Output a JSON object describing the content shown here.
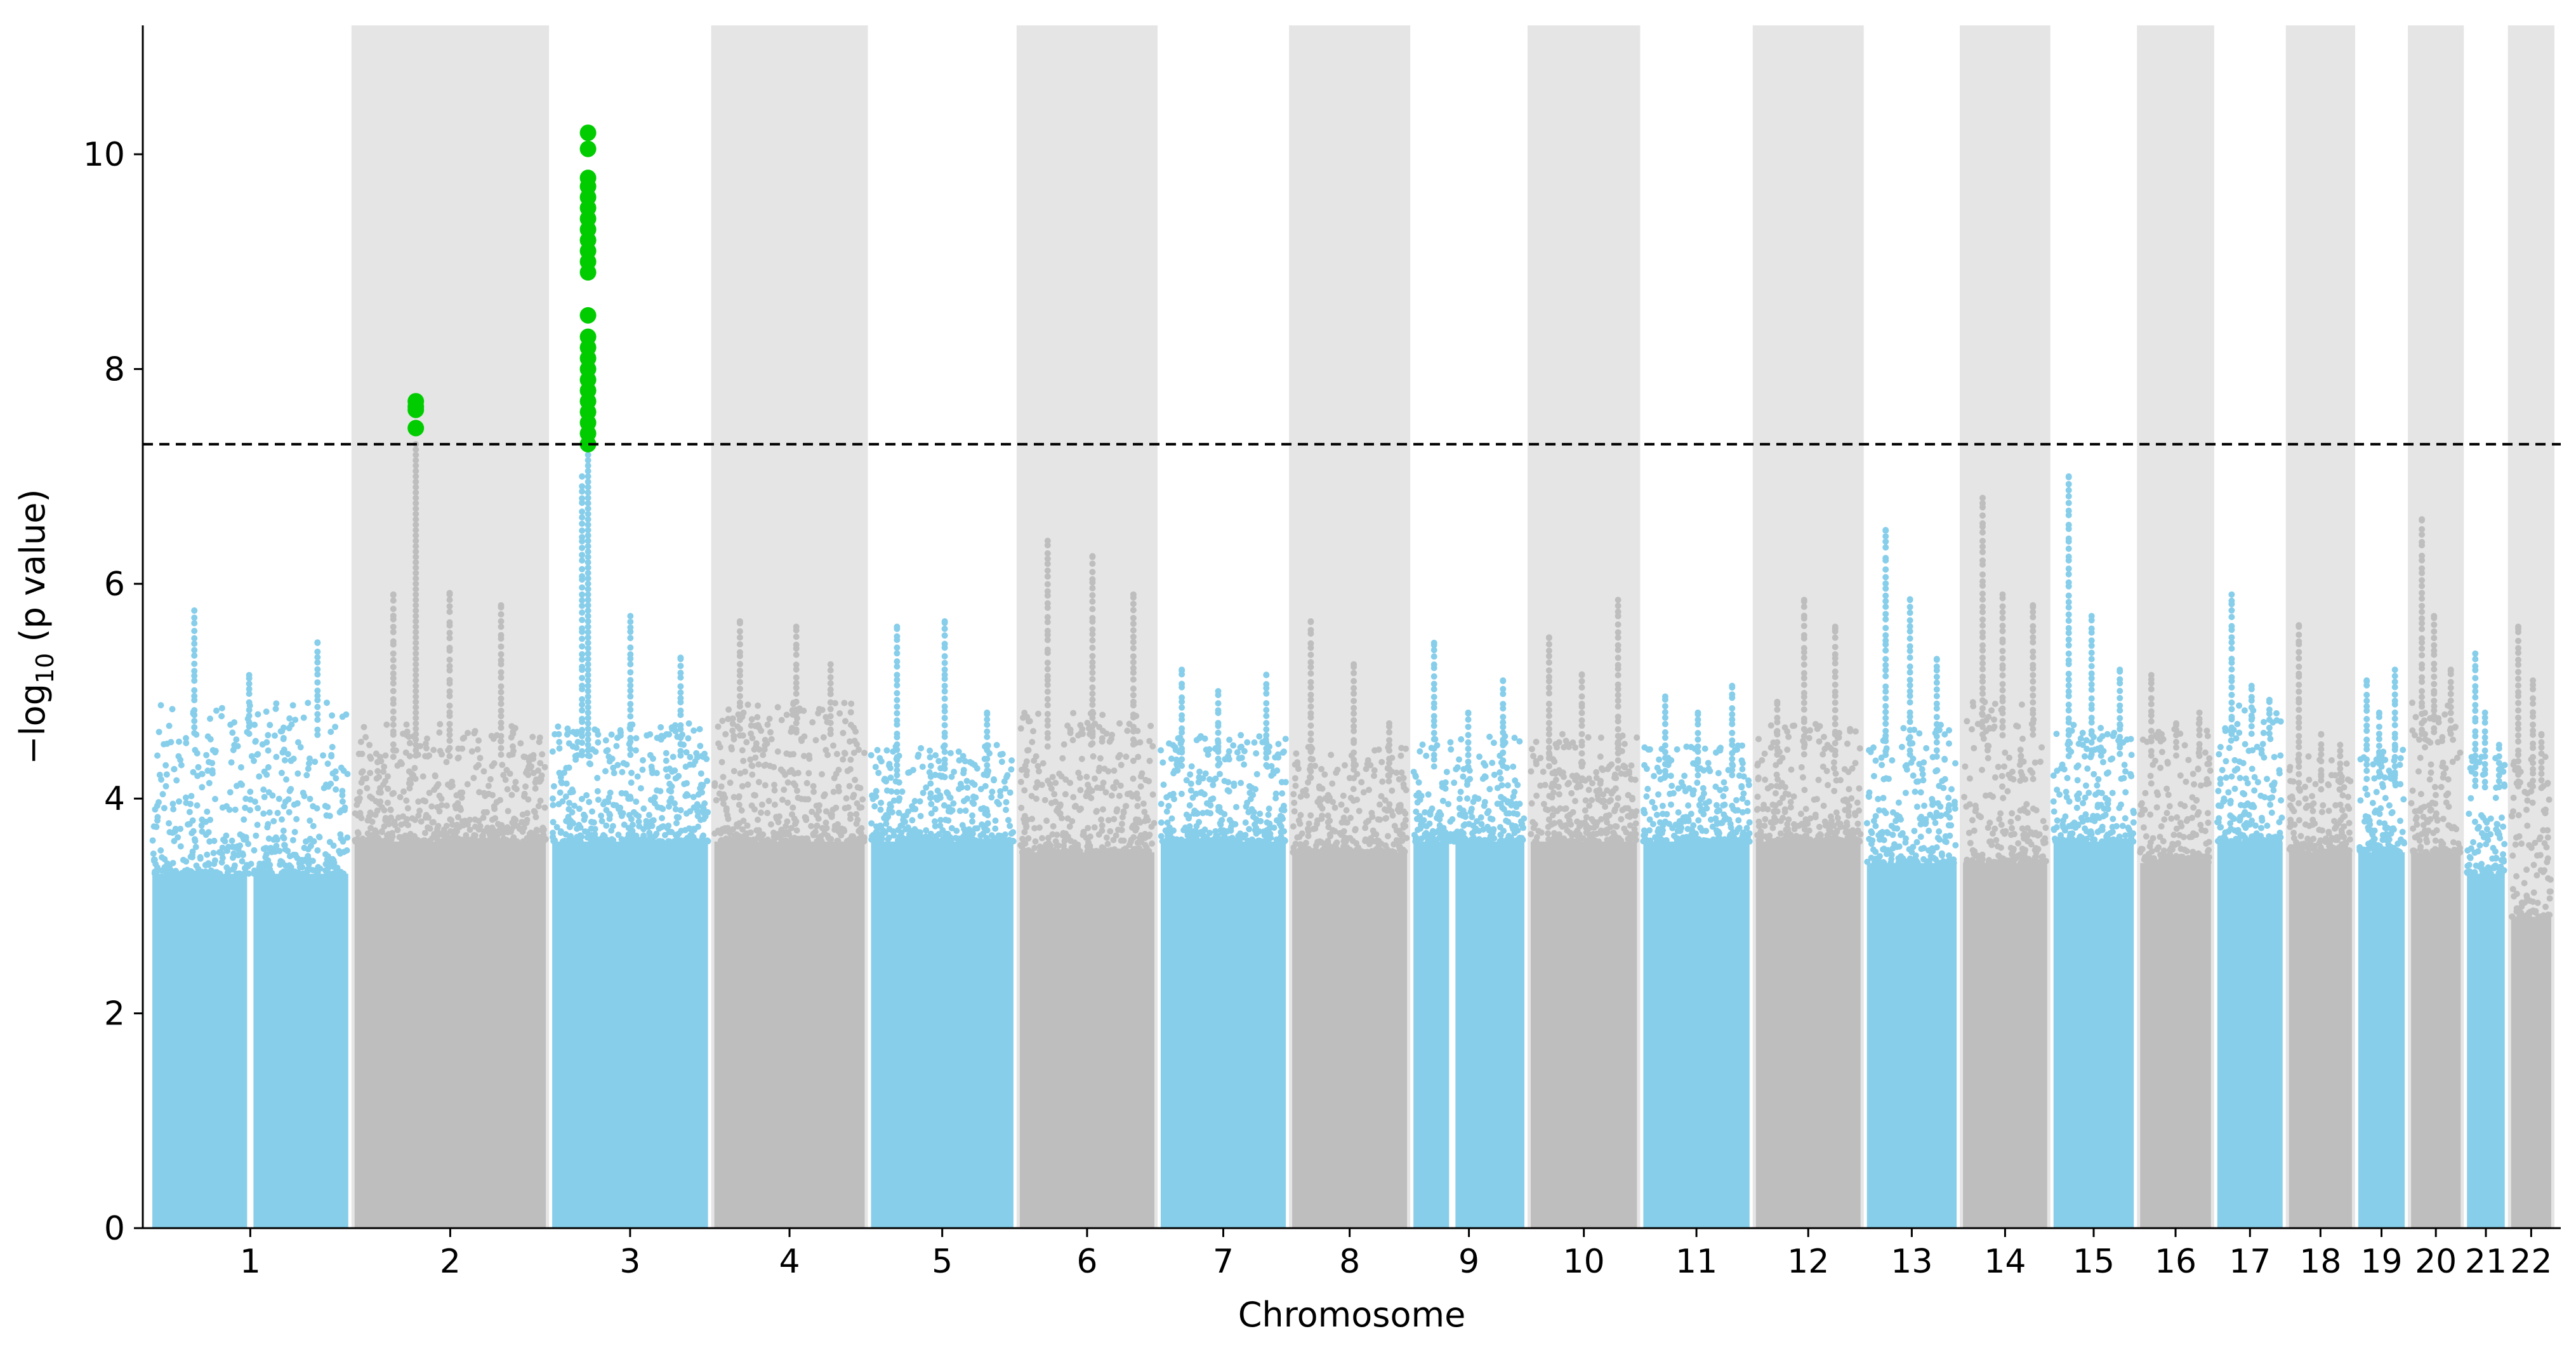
{
  "chart_data": {
    "type": "manhattan",
    "xlabel": "Chromosome",
    "ylabel": "−log",
    "ylabel_sub": "10",
    "ylabel_rest": " (p value)",
    "ylim": [
      0,
      11.2
    ],
    "yticks": [
      0,
      2,
      4,
      6,
      8,
      10
    ],
    "threshold": 7.3,
    "colors": {
      "odd": "#87ceeb",
      "even": "#bebebe",
      "band": "#e5e5e5",
      "significant": "#00cc00",
      "threshold": "#000000",
      "axis": "#000000"
    },
    "chromosomes": [
      {
        "label": "1",
        "length": 249,
        "gap_at": 0.5,
        "peaks": [
          5.75,
          5.15,
          5.45
        ],
        "top": 4.6,
        "body": 3.3
      },
      {
        "label": "2",
        "length": 243,
        "gap_at": null,
        "peaks": [
          5.9,
          5.9,
          5.8
        ],
        "top": 4.4,
        "body": 3.6
      },
      {
        "label": "3",
        "length": 198,
        "gap_at": null,
        "peaks": [
          7.0,
          5.7,
          5.3
        ],
        "top": 4.4,
        "body": 3.6
      },
      {
        "label": "4",
        "length": 191,
        "gap_at": null,
        "peaks": [
          5.65,
          5.6,
          5.25
        ],
        "top": 4.6,
        "body": 3.6
      },
      {
        "label": "5",
        "length": 181,
        "gap_at": null,
        "peaks": [
          5.6,
          5.65,
          4.8
        ],
        "top": 4.2,
        "body": 3.6
      },
      {
        "label": "6",
        "length": 171,
        "gap_at": null,
        "peaks": [
          6.4,
          6.25,
          5.9
        ],
        "top": 4.5,
        "body": 3.5
      },
      {
        "label": "7",
        "length": 159,
        "gap_at": null,
        "peaks": [
          5.2,
          5.0,
          5.15
        ],
        "top": 4.3,
        "body": 3.6
      },
      {
        "label": "8",
        "length": 146,
        "gap_at": null,
        "peaks": [
          5.65,
          5.25,
          4.7
        ],
        "top": 4.2,
        "body": 3.5
      },
      {
        "label": "9",
        "length": 141,
        "gap_at": 0.35,
        "peaks": [
          5.45,
          4.8,
          5.1
        ],
        "top": 4.3,
        "body": 3.6
      },
      {
        "label": "10",
        "length": 135,
        "gap_at": null,
        "peaks": [
          5.5,
          5.15,
          5.85
        ],
        "top": 4.3,
        "body": 3.6
      },
      {
        "label": "11",
        "length": 135,
        "gap_at": null,
        "peaks": [
          4.95,
          4.8,
          5.05
        ],
        "top": 4.2,
        "body": 3.6
      },
      {
        "label": "12",
        "length": 133,
        "gap_at": null,
        "peaks": [
          4.9,
          5.85,
          5.6
        ],
        "top": 4.4,
        "body": 3.6
      },
      {
        "label": "13",
        "length": 114,
        "gap_at": null,
        "peaks": [
          6.5,
          5.85,
          5.3
        ],
        "top": 4.4,
        "body": 3.4
      },
      {
        "label": "14",
        "length": 107,
        "gap_at": null,
        "peaks": [
          6.8,
          5.9,
          5.8
        ],
        "top": 4.6,
        "body": 3.4
      },
      {
        "label": "15",
        "length": 102,
        "gap_at": null,
        "peaks": [
          7.0,
          5.7,
          5.2
        ],
        "top": 4.4,
        "body": 3.6
      },
      {
        "label": "16",
        "length": 90,
        "gap_at": null,
        "peaks": [
          5.15,
          4.7,
          4.8
        ],
        "top": 4.4,
        "body": 3.4
      },
      {
        "label": "17",
        "length": 83,
        "gap_at": null,
        "peaks": [
          5.9,
          5.05,
          4.9
        ],
        "top": 4.6,
        "body": 3.6
      },
      {
        "label": "18",
        "length": 80,
        "gap_at": null,
        "peaks": [
          5.6,
          4.6,
          4.5
        ],
        "top": 4.1,
        "body": 3.5
      },
      {
        "label": "19",
        "length": 59,
        "gap_at": null,
        "peaks": [
          5.1,
          4.8,
          5.2
        ],
        "top": 4.2,
        "body": 3.5
      },
      {
        "label": "20",
        "length": 63,
        "gap_at": null,
        "peaks": [
          6.6,
          5.7,
          5.2
        ],
        "top": 4.6,
        "body": 3.5
      },
      {
        "label": "21",
        "length": 48,
        "gap_at": null,
        "peaks": [
          5.35,
          4.8,
          4.5
        ],
        "top": 4.1,
        "body": 3.3
      },
      {
        "label": "22",
        "length": 51,
        "gap_at": null,
        "peaks": [
          5.6,
          5.1,
          4.6
        ],
        "top": 4.1,
        "body": 2.9
      }
    ],
    "significant_points": [
      {
        "chr": "2",
        "pos": 0.32,
        "values": [
          7.7,
          7.65,
          7.62,
          7.45
        ]
      },
      {
        "chr": "3",
        "pos": 0.23,
        "values": [
          10.2,
          10.05,
          9.78,
          9.7,
          9.6,
          9.5,
          9.4,
          9.3,
          9.2,
          9.1,
          9.0,
          8.9,
          8.5,
          8.3,
          8.2,
          8.1,
          8.0,
          7.9,
          7.8,
          7.7,
          7.6,
          7.5,
          7.4,
          7.3
        ]
      }
    ]
  }
}
